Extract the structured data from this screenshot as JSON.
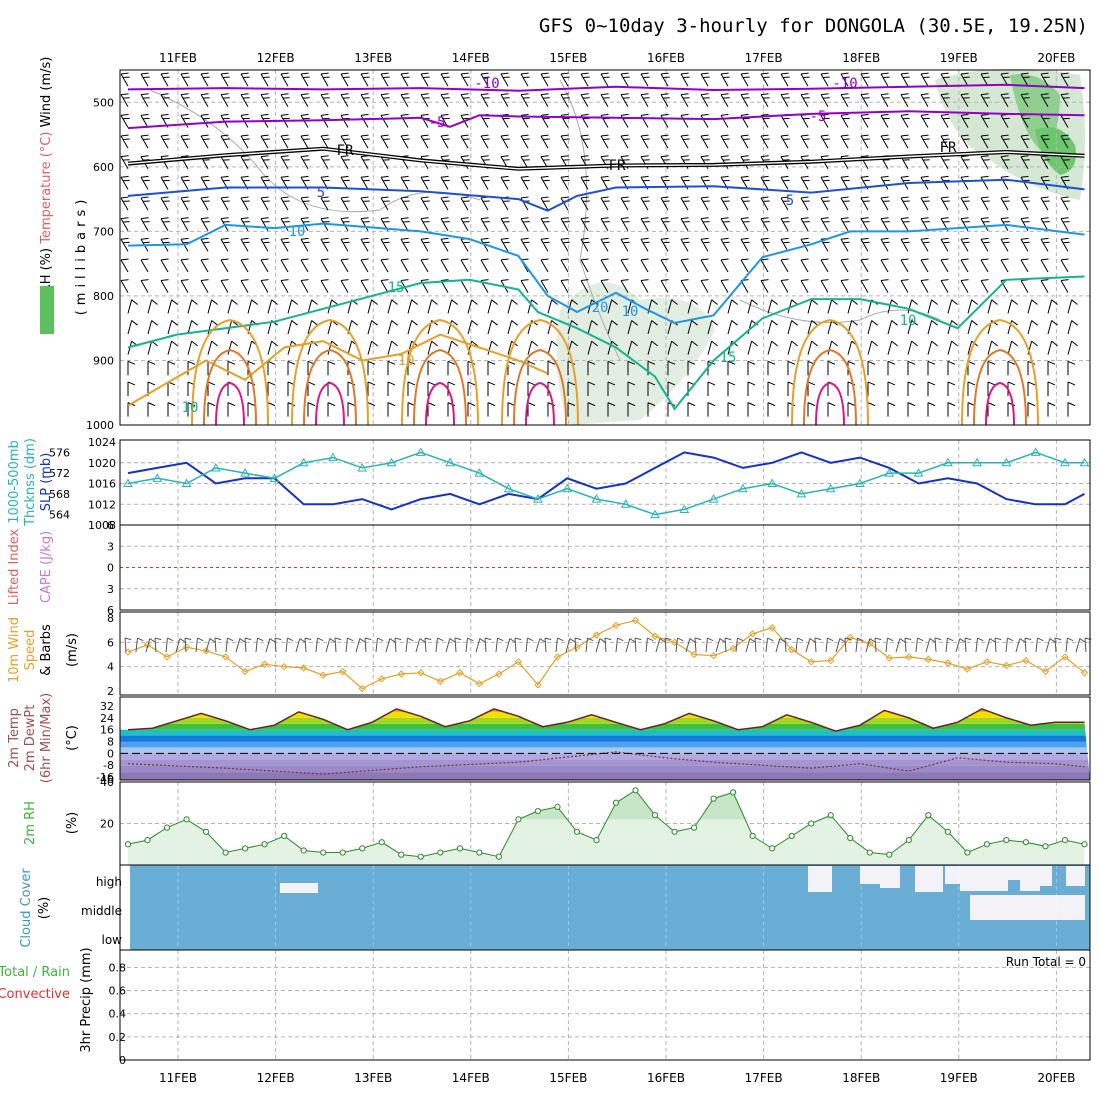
{
  "title": "GFS 0~10day 3-hourly for DONGOLA (30.5E, 19.25N)",
  "colors": {
    "temp_neg10": "#9400c8",
    "temp_neg5": "#9400c8",
    "freezing": "#000000",
    "temp_5": "#1e50d2",
    "temp_10": "#1e96e6",
    "temp_15": "#14b48c",
    "temp_20": "#e6a028",
    "slp": "#1432c8",
    "thickness": "#28b4b4",
    "wind10": "#e6a028",
    "rh": "#3cb43c",
    "cloud": "#6aaed6",
    "cloud_gap": "#f2f2f8"
  },
  "chart_data": [
    {
      "type": "line",
      "panel": "upper-air",
      "title": "",
      "x_labels": [
        "11FEB",
        "12FEB",
        "13FEB",
        "14FEB",
        "15FEB",
        "16FEB",
        "17FEB",
        "18FEB",
        "19FEB",
        "20FEB"
      ],
      "ylabel_parts": [
        {
          "text": "RH (%)",
          "color": "#000000"
        },
        {
          "text": "Temperature (°C)",
          "color": "#e06060"
        },
        {
          "text": "Wind (m/s)",
          "color": "#000000"
        }
      ],
      "ylabel2": "(millibars)",
      "ylim": [
        1000,
        450
      ],
      "yticks": [
        500,
        600,
        700,
        800,
        900,
        1000
      ],
      "contour_labels": [
        "-10",
        "-10",
        "-5",
        "-5",
        "FR",
        "FR",
        "FR",
        "5",
        "5",
        "10",
        "10",
        "10",
        "15",
        "15",
        "10",
        "20",
        "10"
      ],
      "series": [
        {
          "id": "temp_neg10",
          "x": [
            0,
            1,
            2,
            3,
            4,
            5,
            6,
            7,
            8,
            9,
            9.8
          ],
          "values": [
            480,
            478,
            480,
            478,
            482,
            476,
            481,
            479,
            476,
            473,
            478
          ]
        },
        {
          "id": "temp_neg5",
          "x": [
            0,
            1,
            2,
            3,
            3.3,
            3.6,
            4,
            5,
            6,
            7,
            8,
            9,
            9.8
          ],
          "values": [
            540,
            530,
            528,
            524,
            538,
            520,
            522,
            524,
            526,
            518,
            514,
            518,
            520
          ]
        },
        {
          "id": "freezing",
          "x": [
            0,
            1,
            2,
            3,
            4,
            5,
            6,
            7,
            8,
            9,
            9.8
          ],
          "values": [
            595,
            582,
            572,
            590,
            603,
            598,
            597,
            592,
            584,
            577,
            583
          ]
        },
        {
          "id": "temp_5",
          "x": [
            0,
            1,
            2,
            3,
            4,
            4.3,
            4.6,
            5,
            6,
            7,
            8,
            9,
            9.8
          ],
          "values": [
            645,
            632,
            632,
            638,
            650,
            668,
            645,
            632,
            630,
            640,
            625,
            620,
            635
          ]
        },
        {
          "id": "temp_10",
          "x": [
            0,
            0.6,
            1,
            1.5,
            2,
            3,
            3.5,
            4,
            4.3,
            4.6,
            5,
            5.3,
            5.6,
            6,
            6.5,
            7,
            7.4,
            8,
            9,
            9.8
          ],
          "values": [
            722,
            720,
            690,
            695,
            688,
            700,
            712,
            738,
            800,
            825,
            795,
            820,
            842,
            830,
            740,
            720,
            700,
            700,
            690,
            705
          ]
        },
        {
          "id": "temp_15",
          "x": [
            0,
            0.5,
            1,
            1.5,
            2,
            3,
            3.5,
            4,
            4.2,
            4.6,
            5,
            5.4,
            5.6,
            6,
            6.5,
            7,
            7.5,
            8,
            8.5,
            9,
            9.8
          ],
          "values": [
            880,
            860,
            850,
            840,
            820,
            780,
            775,
            790,
            825,
            850,
            880,
            925,
            975,
            900,
            835,
            805,
            805,
            820,
            850,
            775,
            770
          ]
        },
        {
          "id": "temp_20",
          "x": [
            0,
            0.4,
            0.8,
            1.2,
            1.6,
            2,
            2.4,
            2.8,
            3.2,
            3.6,
            4,
            4.3
          ],
          "values": [
            970,
            935,
            900,
            930,
            880,
            870,
            900,
            890,
            860,
            880,
            900,
            920
          ]
        }
      ]
    },
    {
      "type": "line",
      "panel": "slp-thickness",
      "title": "",
      "ylabel_parts": [
        {
          "text": "1000-500mb",
          "color": "#28b4b4"
        },
        {
          "text": "Thcknss (dm)",
          "color": "#28b4b4"
        },
        {
          "text": "SLP (mb)",
          "color": "#1432c8"
        }
      ],
      "ylim_slp": [
        1008,
        1024
      ],
      "yticks_slp": [
        1008,
        1012,
        1016,
        1020,
        1024
      ],
      "ylim_thick": [
        562,
        578
      ],
      "yticks_thick": [
        564,
        568,
        572,
        576
      ],
      "series": [
        {
          "name": "SLP",
          "x": [
            0,
            0.3,
            0.6,
            0.9,
            1.2,
            1.5,
            1.8,
            2.1,
            2.4,
            2.7,
            3,
            3.3,
            3.6,
            3.9,
            4.2,
            4.5,
            4.8,
            5.1,
            5.4,
            5.7,
            6,
            6.3,
            6.6,
            6.9,
            7.2,
            7.5,
            7.8,
            8.1,
            8.4,
            8.7,
            9,
            9.3,
            9.6,
            9.8
          ],
          "values": [
            1018,
            1019,
            1020,
            1016,
            1017,
            1017,
            1012,
            1012,
            1013,
            1011,
            1013,
            1014,
            1012,
            1014,
            1013,
            1017,
            1015,
            1016,
            1019,
            1022,
            1021,
            1019,
            1020,
            1022,
            1020,
            1021,
            1019,
            1016,
            1017,
            1016,
            1013,
            1012,
            1012,
            1014
          ]
        },
        {
          "name": "Thickness",
          "x": [
            0,
            0.3,
            0.6,
            0.9,
            1.2,
            1.5,
            1.8,
            2.1,
            2.4,
            2.7,
            3,
            3.3,
            3.6,
            3.9,
            4.2,
            4.5,
            4.8,
            5.1,
            5.4,
            5.7,
            6,
            6.3,
            6.6,
            6.9,
            7.2,
            7.5,
            7.8,
            8.1,
            8.4,
            8.7,
            9,
            9.3,
            9.6,
            9.8
          ],
          "values": [
            570,
            571,
            570,
            573,
            572,
            571,
            574,
            575,
            573,
            574,
            576,
            574,
            572,
            569,
            567,
            569,
            567,
            566,
            564,
            565,
            567,
            569,
            570,
            568,
            569,
            570,
            572,
            572,
            574,
            574,
            574,
            576,
            574,
            574
          ]
        }
      ]
    },
    {
      "type": "line",
      "panel": "cape-lifted-index",
      "title": "",
      "ylabel_parts": [
        {
          "text": "CAPE (J/kg)",
          "color": "#c87ad2"
        },
        {
          "text": "Lifted Index",
          "color": "#e06060"
        }
      ],
      "yticks": [
        "6",
        "3",
        "0",
        "3",
        "6"
      ],
      "ylim": [
        -6,
        6
      ],
      "series": [
        {
          "name": "Lifted Index zero line",
          "x": [
            0,
            9.8
          ],
          "values": [
            0,
            0
          ]
        }
      ]
    },
    {
      "type": "line",
      "panel": "wind-10m",
      "title": "",
      "ylabel_parts": [
        {
          "text": "10m Wind",
          "color": "#e6a028"
        },
        {
          "text": "Speed",
          "color": "#e6a028"
        },
        {
          "text": "& Barbs",
          "color": "#000000"
        },
        {
          "text": "(m/s)",
          "color": "#000000"
        }
      ],
      "ylim": [
        2,
        8
      ],
      "yticks": [
        2,
        4,
        6,
        8
      ],
      "series": [
        {
          "name": "10m Wind Speed",
          "x": [
            0,
            0.2,
            0.4,
            0.6,
            0.8,
            1,
            1.2,
            1.4,
            1.6,
            1.8,
            2,
            2.2,
            2.4,
            2.6,
            2.8,
            3,
            3.2,
            3.4,
            3.6,
            3.8,
            4,
            4.2,
            4.4,
            4.6,
            4.8,
            5,
            5.2,
            5.4,
            5.6,
            5.8,
            6,
            6.2,
            6.4,
            6.6,
            6.8,
            7,
            7.2,
            7.4,
            7.6,
            7.8,
            8,
            8.2,
            8.4,
            8.6,
            8.8,
            9,
            9.2,
            9.4,
            9.6,
            9.8
          ],
          "values": [
            5.2,
            5.8,
            4.8,
            5.6,
            5.3,
            4.8,
            3.6,
            4.2,
            4.0,
            3.9,
            3.3,
            3.6,
            2.2,
            3.0,
            3.4,
            3.5,
            2.8,
            3.5,
            2.6,
            3.4,
            4.4,
            2.5,
            4.8,
            5.6,
            6.6,
            7.4,
            7.8,
            6.5,
            6.0,
            5.0,
            4.9,
            5.5,
            6.7,
            7.2,
            5.4,
            4.4,
            4.5,
            6.4,
            5.9,
            4.7,
            4.8,
            4.6,
            4.3,
            3.8,
            4.4,
            4.1,
            4.5,
            3.6,
            4.8,
            3.5
          ]
        }
      ]
    },
    {
      "type": "area",
      "panel": "temperature-2m",
      "title": "",
      "ylabel_parts": [
        {
          "text": "2m Temp",
          "color": "#a05050"
        },
        {
          "text": "2m DewPt",
          "color": "#a05050"
        },
        {
          "text": "(6hr Min/Max)",
          "color": "#a05050"
        },
        {
          "text": "(°C)",
          "color": "#000000"
        }
      ],
      "yticks": [
        "32",
        "24",
        "16",
        "8",
        "0",
        "-8",
        "-16"
      ],
      "ylim": [
        -18,
        34
      ],
      "series": [
        {
          "name": "2m Temp",
          "x": [
            0,
            0.25,
            0.5,
            0.75,
            1,
            1.25,
            1.5,
            1.75,
            2,
            2.25,
            2.5,
            2.75,
            3,
            3.25,
            3.5,
            3.75,
            4,
            4.25,
            4.5,
            4.75,
            5,
            5.25,
            5.5,
            5.75,
            6,
            6.25,
            6.5,
            6.75,
            7,
            7.25,
            7.5,
            7.75,
            8,
            8.25,
            8.5,
            8.75,
            9,
            9.25,
            9.5,
            9.75,
            9.8
          ],
          "values": [
            16,
            17,
            22,
            27,
            22,
            16,
            19,
            28,
            23,
            16,
            21,
            30,
            25,
            18,
            22,
            30,
            25,
            18,
            21,
            26,
            21,
            16,
            20,
            27,
            22,
            16,
            18,
            26,
            21,
            15,
            19,
            29,
            24,
            17,
            21,
            30,
            24,
            19,
            21,
            21,
            21
          ]
        },
        {
          "name": "2m DewPt",
          "x": [
            0,
            1,
            2,
            3,
            4,
            5,
            5.5,
            6,
            6.5,
            7,
            7.5,
            8,
            8.5,
            9,
            9.5,
            9.8
          ],
          "values": [
            -7,
            -10,
            -14,
            -9,
            -6,
            1,
            -3,
            -6,
            -8,
            -10,
            -7,
            -12,
            -3,
            -6,
            -7,
            -9
          ]
        }
      ]
    },
    {
      "type": "area",
      "panel": "rh-2m",
      "title": "",
      "ylabel_parts": [
        {
          "text": "2m RH",
          "color": "#3cb43c"
        },
        {
          "text": "(%)",
          "color": "#000000"
        }
      ],
      "ylim": [
        0,
        40
      ],
      "yticks": [
        20,
        40
      ],
      "series": [
        {
          "name": "2m RH",
          "x": [
            0,
            0.2,
            0.4,
            0.6,
            0.8,
            1,
            1.2,
            1.4,
            1.6,
            1.8,
            2,
            2.2,
            2.4,
            2.6,
            2.8,
            3,
            3.2,
            3.4,
            3.6,
            3.8,
            4,
            4.2,
            4.4,
            4.6,
            4.8,
            5,
            5.2,
            5.4,
            5.6,
            5.8,
            6,
            6.2,
            6.4,
            6.6,
            6.8,
            7,
            7.2,
            7.4,
            7.6,
            7.8,
            8,
            8.2,
            8.4,
            8.6,
            8.8,
            9,
            9.2,
            9.4,
            9.6,
            9.8
          ],
          "values": [
            10,
            12,
            18,
            22,
            16,
            6,
            8,
            10,
            14,
            7,
            6,
            6,
            8,
            11,
            5,
            4,
            6,
            8,
            6,
            4,
            22,
            26,
            28,
            16,
            12,
            30,
            36,
            24,
            16,
            18,
            32,
            35,
            14,
            8,
            14,
            20,
            24,
            13,
            6,
            5,
            12,
            24,
            16,
            6,
            10,
            12,
            11,
            9,
            12,
            10
          ]
        }
      ]
    },
    {
      "type": "heatmap",
      "panel": "cloud-cover",
      "title": "",
      "ylabel_parts": [
        {
          "text": "Cloud Cover",
          "color": "#3c96c8"
        },
        {
          "text": "(%)",
          "color": "#000000"
        }
      ],
      "yticks": [
        "high",
        "middle",
        "low"
      ],
      "levels": [
        "high",
        "middle",
        "low"
      ],
      "values": "cloud coverage mostly 100% all levels; high-cloud gaps on 12FEB and 17FEB–20FEB; middle-cloud gaps 19FEB–20FEB"
    },
    {
      "type": "bar",
      "panel": "precipitation",
      "title": "",
      "ylabel_parts": [
        {
          "text": "Total / Rain",
          "color": "#3cb43c"
        },
        {
          "text": "Convective",
          "color": "#e03030"
        },
        {
          "text": "3hr Precip (mm)",
          "color": "#000000"
        }
      ],
      "annotation": "Run Total = 0",
      "ylim": [
        0,
        0.95
      ],
      "yticks": [
        "0",
        "0.2",
        "0.4",
        "0.6",
        "0.8"
      ],
      "categories": [
        "11FEB",
        "12FEB",
        "13FEB",
        "14FEB",
        "15FEB",
        "16FEB",
        "17FEB",
        "18FEB",
        "19FEB",
        "20FEB"
      ],
      "values": [
        0,
        0,
        0,
        0,
        0,
        0,
        0,
        0,
        0,
        0
      ]
    }
  ]
}
